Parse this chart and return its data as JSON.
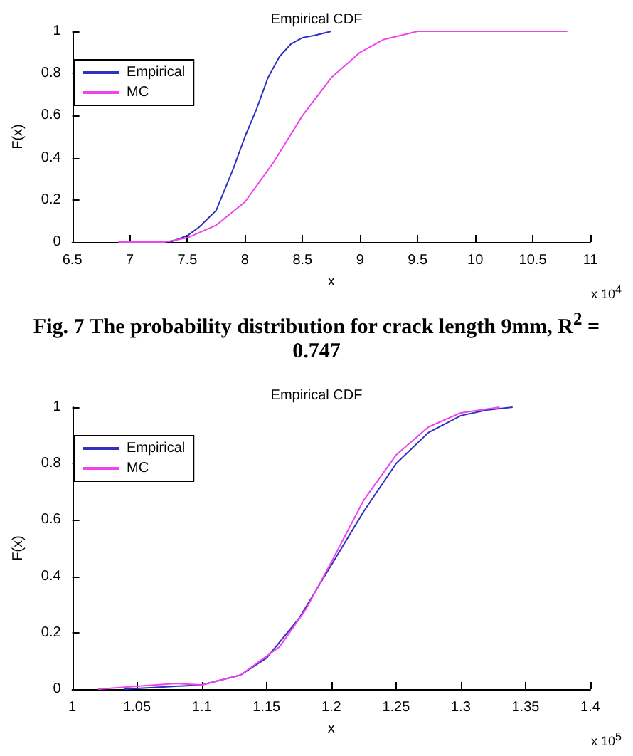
{
  "chart_data": [
    {
      "type": "line",
      "title": "Empirical CDF",
      "xlabel": "x",
      "ylabel": "F(x)",
      "xlim": [
        6.5,
        11
      ],
      "xticks": [
        6.5,
        7,
        7.5,
        8,
        8.5,
        9,
        9.5,
        10,
        10.5,
        11
      ],
      "ylim": [
        0,
        1
      ],
      "yticks": [
        0,
        0.2,
        0.4,
        0.6,
        0.8,
        1
      ],
      "legend": "top left",
      "grid": false,
      "marker": "none",
      "annotations": [
        "x 10$^{4}$",
        "Fig. 7 The probability distribution for crack length 9mm, R$^{2}$ = 0.747"
      ],
      "series": [
        {
          "name": "Empirical",
          "color": "#3030c0",
          "x": [
            7.35,
            7.5,
            7.6,
            7.75,
            7.9,
            8.0,
            8.1,
            8.2,
            8.3,
            8.4,
            8.5,
            8.6,
            8.75
          ],
          "values": [
            0,
            0.03,
            0.07,
            0.15,
            0.35,
            0.5,
            0.63,
            0.78,
            0.88,
            0.94,
            0.97,
            0.98,
            1
          ]
        },
        {
          "name": "MC",
          "color": "#ee44ee",
          "x": [
            6.9,
            7.3,
            7.5,
            7.75,
            8.0,
            8.25,
            8.5,
            8.75,
            9.0,
            9.2,
            9.5,
            10.8
          ],
          "values": [
            0,
            0,
            0.02,
            0.08,
            0.19,
            0.38,
            0.6,
            0.78,
            0.9,
            0.96,
            1,
            1
          ]
        }
      ]
    },
    {
      "type": "line",
      "title": "Empirical CDF",
      "xlabel": "x",
      "ylabel": "F(x)",
      "xlim": [
        1,
        1.4
      ],
      "xticks": [
        1,
        1.05,
        1.1,
        1.15,
        1.2,
        1.25,
        1.3,
        1.35,
        1.4
      ],
      "ylim": [
        0,
        1
      ],
      "yticks": [
        0,
        0.2,
        0.4,
        0.6,
        0.8,
        1
      ],
      "legend": "top left",
      "grid": false,
      "marker": "none",
      "annotations": [
        "x 10$^{5}$"
      ],
      "series": [
        {
          "name": "Empirical",
          "color": "#3030c0",
          "x": [
            1.04,
            1.1,
            1.13,
            1.15,
            1.175,
            1.2,
            1.225,
            1.25,
            1.275,
            1.3,
            1.32,
            1.34
          ],
          "values": [
            0,
            0.015,
            0.05,
            0.11,
            0.25,
            0.44,
            0.63,
            0.8,
            0.91,
            0.97,
            0.99,
            1
          ]
        },
        {
          "name": "MC",
          "color": "#ee44ee",
          "x": [
            1.02,
            1.08,
            1.1,
            1.13,
            1.16,
            1.18,
            1.2,
            1.225,
            1.25,
            1.275,
            1.3,
            1.33
          ],
          "values": [
            0,
            0.02,
            0.015,
            0.05,
            0.15,
            0.28,
            0.45,
            0.67,
            0.83,
            0.93,
            0.98,
            1
          ]
        }
      ]
    }
  ]
}
